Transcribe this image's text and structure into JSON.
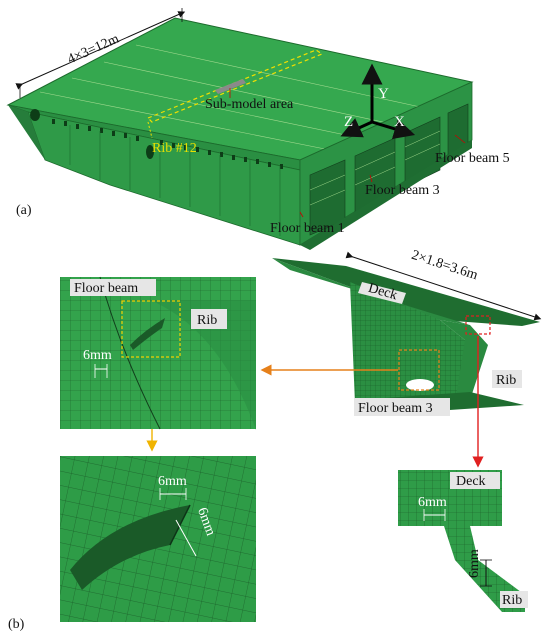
{
  "panel_a": {
    "label": "(a)",
    "dimension": "4×3=12m",
    "sub_model": "Sub-model area",
    "rib": "Rib #12",
    "axes": {
      "y": "Y",
      "z": "Z",
      "x": "X"
    },
    "floor_beam_5": "Floor beam 5",
    "floor_beam_3": "Floor beam 3",
    "floor_beam_1": "Floor beam 1"
  },
  "panel_b": {
    "label": "(b)",
    "dimension": "2×1.8=3.6m",
    "deck": "Deck",
    "rib": "Rib",
    "floor_beam_3": "Floor beam 3",
    "inset1": {
      "floor_beam": "Floor beam",
      "rib": "Rib",
      "mesh": "6mm"
    },
    "inset2": {
      "mesh_a": "6mm",
      "mesh_b": "6mm"
    },
    "inset3": {
      "deck": "Deck",
      "mesh_a": "6mm",
      "mesh_b": "6mm",
      "rib": "Rib"
    }
  },
  "colors": {
    "mesh_green": "#2e9e4a",
    "dark_green": "#1f6b30",
    "yellow": "#f0d000",
    "orange": "#e6801a",
    "red": "#e02020"
  }
}
